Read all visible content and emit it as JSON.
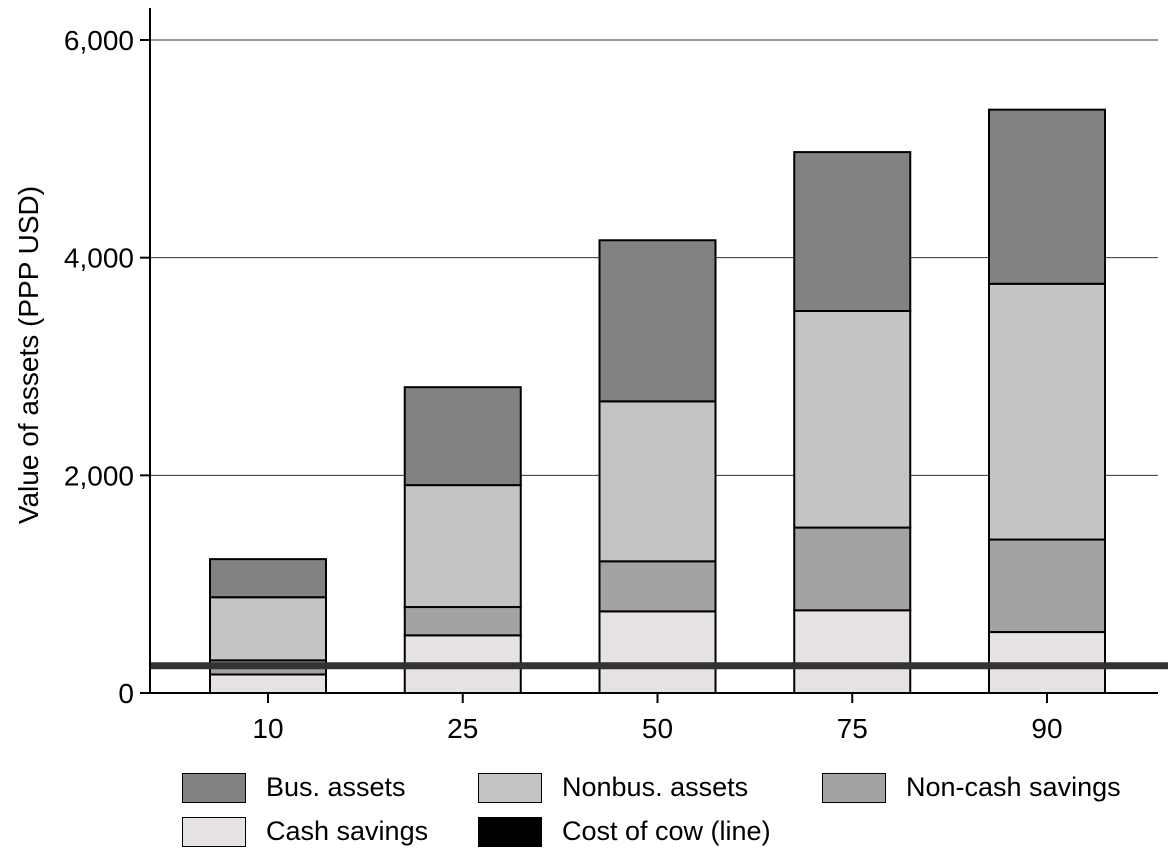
{
  "chart_data": {
    "type": "bar",
    "stacked": true,
    "ylabel": "Value of assets (PPP USD)",
    "xlabel": "",
    "title": "",
    "categories": [
      "10",
      "25",
      "50",
      "75",
      "90"
    ],
    "ylim": [
      0,
      6000
    ],
    "yticks": [
      0,
      2000,
      4000,
      6000
    ],
    "ytick_labels": [
      "0",
      "2,000",
      "4,000",
      "6,000"
    ],
    "grid": true,
    "series": [
      {
        "name": "Cash savings",
        "color": "#e6e2e6",
        "values": [
          170,
          530,
          750,
          760,
          560
        ]
      },
      {
        "name": "Non-cash savings",
        "color": "#a3a2a5",
        "values": [
          130,
          260,
          460,
          760,
          850
        ]
      },
      {
        "name": "Nonbus. assets",
        "color": "#c4c3c6",
        "values": [
          580,
          1120,
          1470,
          1990,
          2350
        ]
      },
      {
        "name": "Bus. assets",
        "color": "#838184",
        "values": [
          350,
          900,
          1480,
          1460,
          1600
        ]
      }
    ],
    "reference_line": {
      "name": "Cost of cow (line)",
      "value": 250,
      "color": "#333333"
    },
    "legend": {
      "position": "bottom",
      "entries": [
        {
          "label": "Bus. assets",
          "color": "#838184"
        },
        {
          "label": "Nonbus. assets",
          "color": "#c4c3c6"
        },
        {
          "label": "Non-cash savings",
          "color": "#a3a2a5"
        },
        {
          "label": "Cash savings",
          "color": "#e6e2e6"
        },
        {
          "label": "Cost of cow (line)",
          "color": "#000000"
        }
      ]
    }
  }
}
